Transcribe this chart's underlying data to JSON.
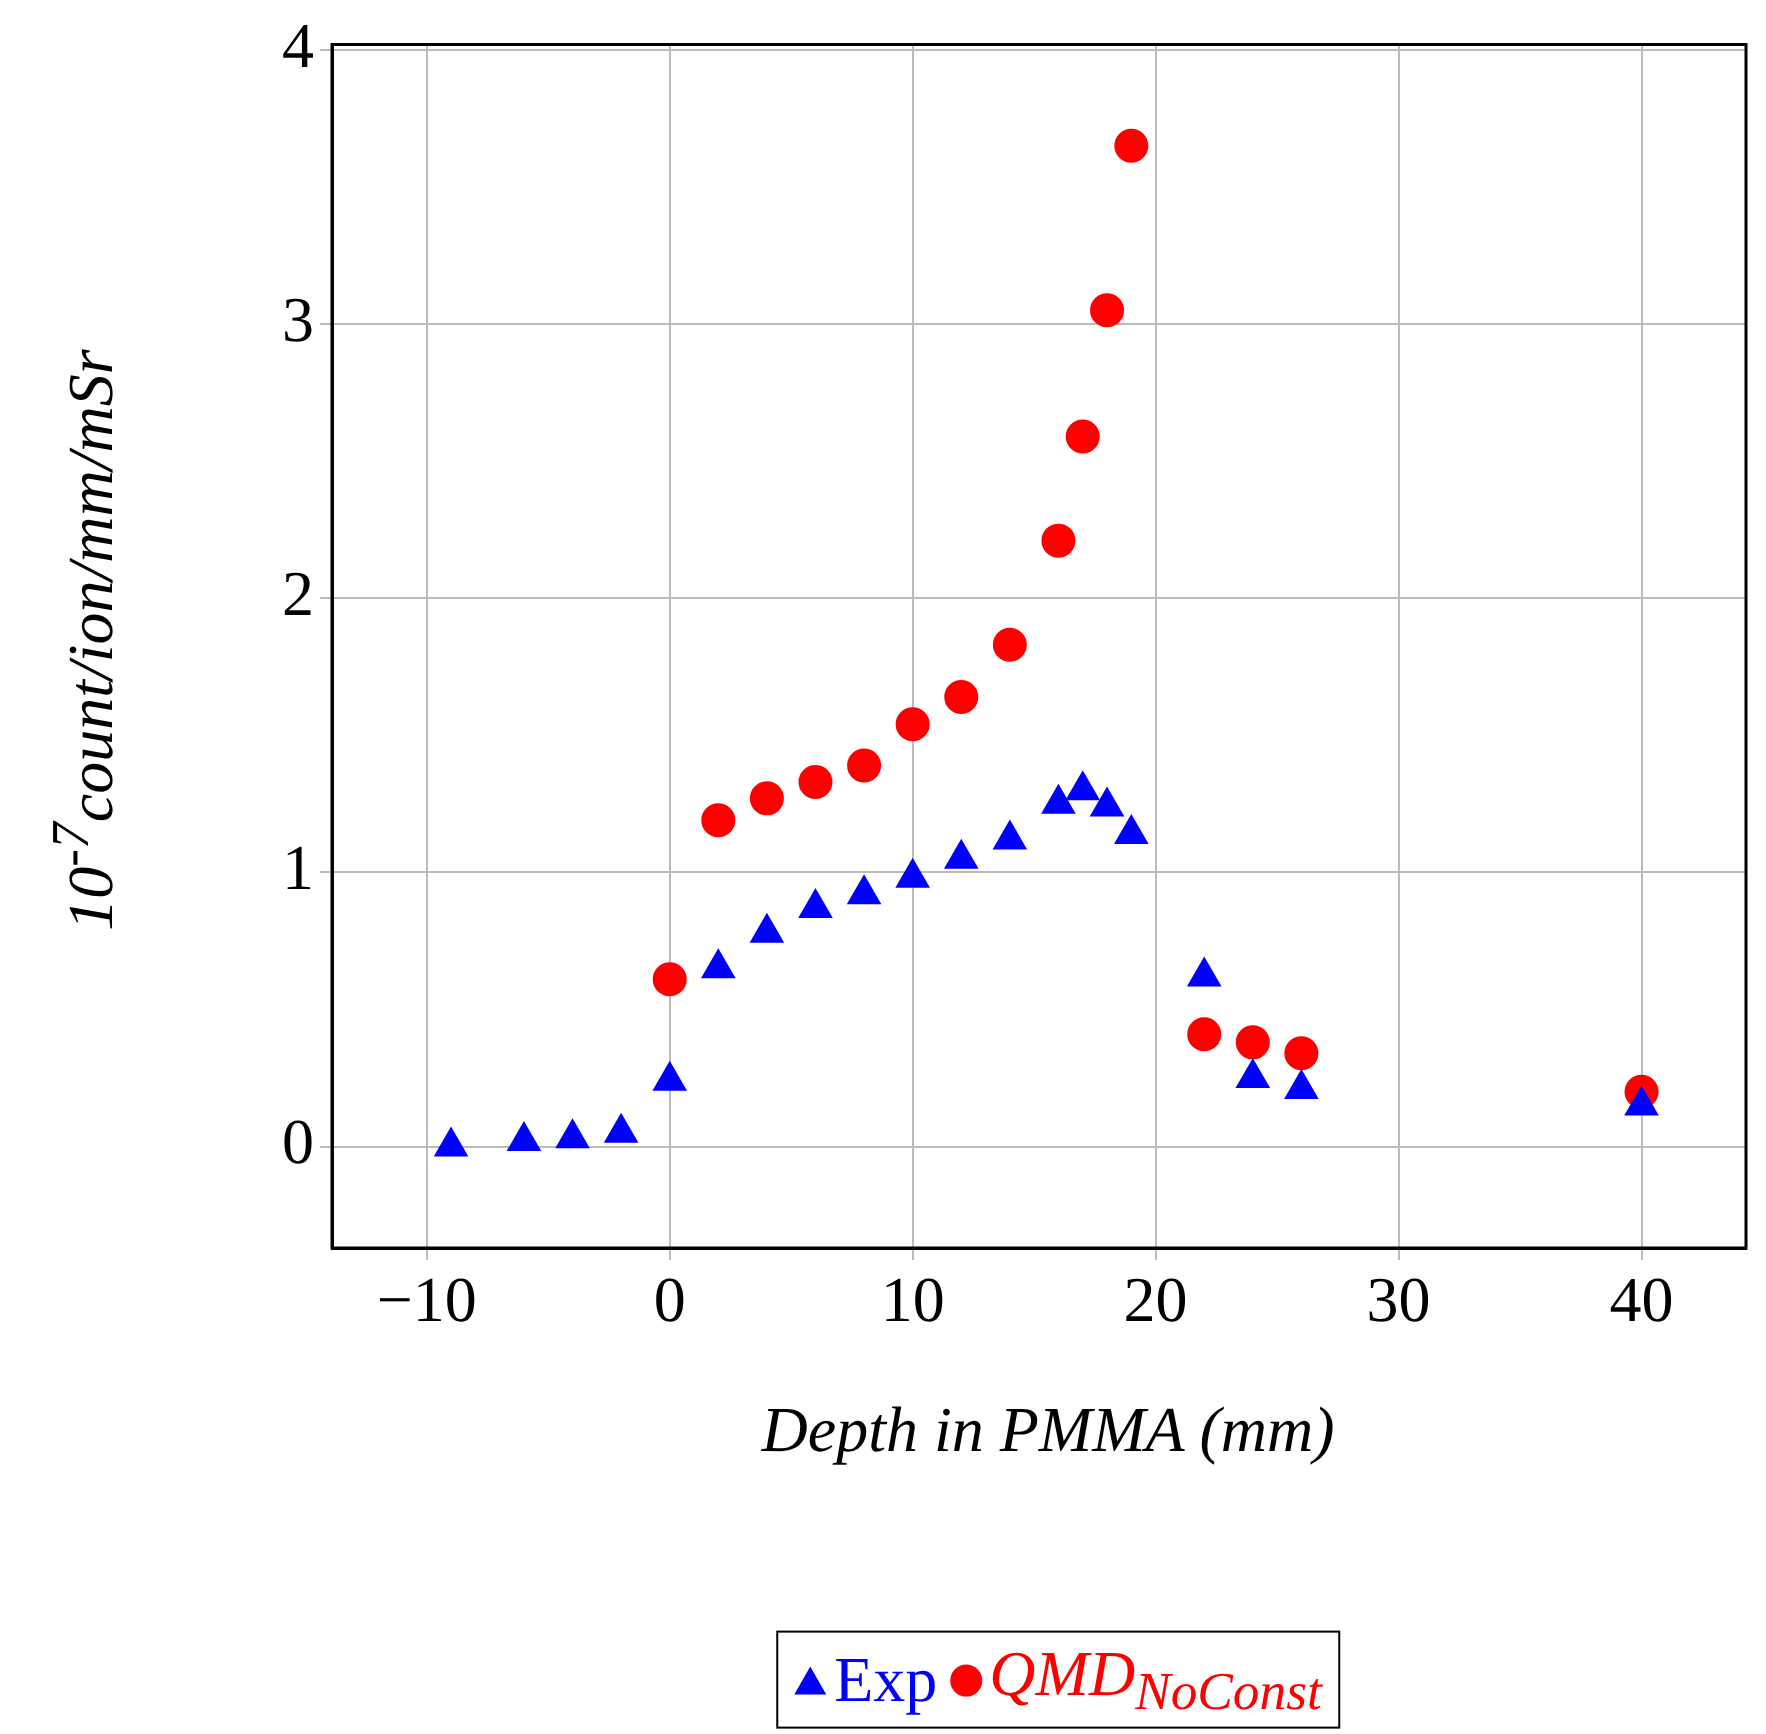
{
  "chart_data": {
    "type": "scatter",
    "xlabel": "Depth in PMMA (mm)",
    "ylabel": "10$^{-7}$count/ion/mm/mSr",
    "xlim": [
      -13.9,
      44.3
    ],
    "xticks": [
      -10,
      0,
      10,
      20,
      30,
      40
    ],
    "ylim": [
      -0.37,
      4.02
    ],
    "yticks": [
      0,
      1,
      2,
      3,
      4
    ],
    "grid": true,
    "legend": "bottom",
    "series": [
      {
        "name": "Exp",
        "color": "#0000ff",
        "marker": "triangle",
        "x": [
          -9,
          -6,
          -4,
          -2,
          0,
          2,
          4,
          6,
          8,
          10,
          12,
          14,
          16,
          17,
          18,
          19,
          22,
          24,
          26,
          40
        ],
        "values": [
          0.0,
          0.02,
          0.03,
          0.05,
          0.24,
          0.65,
          0.78,
          0.87,
          0.92,
          0.98,
          1.05,
          1.12,
          1.25,
          1.3,
          1.24,
          1.14,
          0.62,
          0.25,
          0.21,
          0.15
        ]
      },
      {
        "name": "QMD$_{NoConst}$",
        "color": "#ff0000",
        "marker": "circle",
        "x": [
          0,
          2,
          4,
          6,
          8,
          10,
          12,
          14,
          16,
          17,
          18,
          19,
          22,
          24,
          26,
          40
        ],
        "values": [
          0.61,
          1.19,
          1.27,
          1.33,
          1.39,
          1.54,
          1.64,
          1.83,
          2.21,
          2.59,
          3.05,
          3.65,
          0.41,
          0.38,
          0.34,
          0.2
        ]
      }
    ]
  }
}
